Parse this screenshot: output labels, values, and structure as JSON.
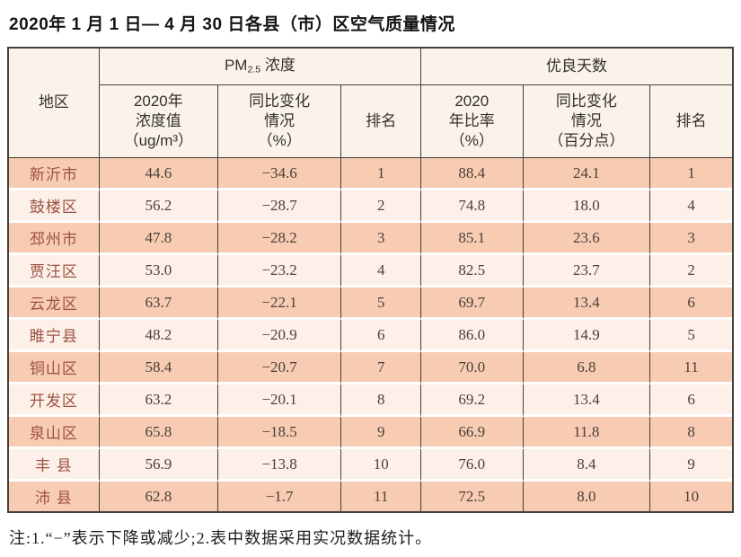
{
  "title": "2020年 1 月 1 日— 4 月 30 日各县（市）区空气质量情况",
  "note": "注:1.“−”表示下降或减少;2.表中数据采用实况数据统计。",
  "table": {
    "header": {
      "region": "地区",
      "pm_group": {
        "prefix": "PM",
        "sub": "2.5",
        "suffix": " 浓度"
      },
      "good_group": "优良天数",
      "pm_value": "2020年\n浓度值\n（ug/m³）",
      "pm_change": "同比变化\n情况\n（%）",
      "pm_rank": "排名",
      "good_ratio": "2020\n年比率\n（%）",
      "good_change": "同比变化\n情况\n（百分点）",
      "good_rank": "排名"
    },
    "rows": [
      {
        "region": "新沂市",
        "pm_value": "44.6",
        "pm_change": "−34.6",
        "pm_rank": "1",
        "good_ratio": "88.4",
        "good_change": "24.1",
        "good_rank": "1"
      },
      {
        "region": "鼓楼区",
        "pm_value": "56.2",
        "pm_change": "−28.7",
        "pm_rank": "2",
        "good_ratio": "74.8",
        "good_change": "18.0",
        "good_rank": "4"
      },
      {
        "region": "邳州市",
        "pm_value": "47.8",
        "pm_change": "−28.2",
        "pm_rank": "3",
        "good_ratio": "85.1",
        "good_change": "23.6",
        "good_rank": "3"
      },
      {
        "region": "贾汪区",
        "pm_value": "53.0",
        "pm_change": "−23.2",
        "pm_rank": "4",
        "good_ratio": "82.5",
        "good_change": "23.7",
        "good_rank": "2"
      },
      {
        "region": "云龙区",
        "pm_value": "63.7",
        "pm_change": "−22.1",
        "pm_rank": "5",
        "good_ratio": "69.7",
        "good_change": "13.4",
        "good_rank": "6"
      },
      {
        "region": "睢宁县",
        "pm_value": "48.2",
        "pm_change": "−20.9",
        "pm_rank": "6",
        "good_ratio": "86.0",
        "good_change": "14.9",
        "good_rank": "5"
      },
      {
        "region": "铜山区",
        "pm_value": "58.4",
        "pm_change": "−20.7",
        "pm_rank": "7",
        "good_ratio": "70.0",
        "good_change": "6.8",
        "good_rank": "11"
      },
      {
        "region": "开发区",
        "pm_value": "63.2",
        "pm_change": "−20.1",
        "pm_rank": "8",
        "good_ratio": "69.2",
        "good_change": "13.4",
        "good_rank": "6"
      },
      {
        "region": "泉山区",
        "pm_value": "65.8",
        "pm_change": "−18.5",
        "pm_rank": "9",
        "good_ratio": "66.9",
        "good_change": "11.8",
        "good_rank": "8"
      },
      {
        "region": "丰 县",
        "pm_value": "56.9",
        "pm_change": "−13.8",
        "pm_rank": "10",
        "good_ratio": "76.0",
        "good_change": "8.4",
        "good_rank": "9"
      },
      {
        "region": "沛 县",
        "pm_value": "62.8",
        "pm_change": "−1.7",
        "pm_rank": "11",
        "good_ratio": "72.5",
        "good_change": "8.0",
        "good_rank": "10"
      }
    ]
  }
}
